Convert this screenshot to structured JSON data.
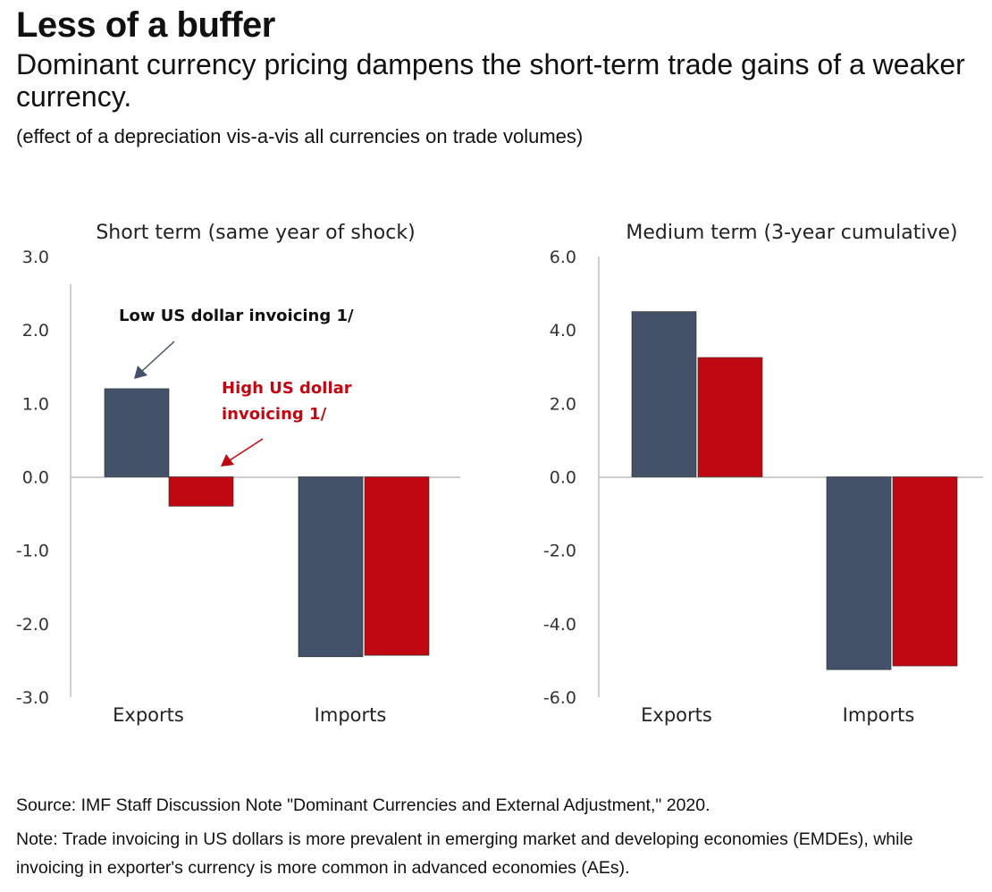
{
  "header": {
    "title": "Less of a buffer",
    "subtitle": "Dominant currency pricing dampens the short-term trade gains of a weaker currency.",
    "note": "(effect of a depreciation vis-a-vis all currencies on trade volumes)"
  },
  "colors": {
    "low_usd": "#435268",
    "high_usd": "#C00812",
    "axis": "#bfbfbf"
  },
  "chart_data": [
    {
      "type": "bar",
      "title": "Short term (same year of shock)",
      "categories": [
        "Exports",
        "Imports"
      ],
      "series": [
        {
          "name": "Low US dollar invoicing 1/",
          "values": [
            1.2,
            -2.45
          ]
        },
        {
          "name": "High US dollar invoicing 1/",
          "values": [
            -0.4,
            -2.43
          ]
        }
      ],
      "ylim": [
        -3,
        3
      ],
      "yticks": [
        3,
        2,
        1,
        0,
        -1,
        -2,
        -3
      ],
      "ytick_labels": [
        "3.0",
        "2.0",
        "1.0",
        "0.0",
        "-1.0",
        "-2.0",
        "-3.0"
      ],
      "annotations": {
        "low": "Low US dollar invoicing 1/",
        "high_line1": "High US dollar",
        "high_line2": "invoicing 1/"
      }
    },
    {
      "type": "bar",
      "title": "Medium term (3-year cumulative)",
      "categories": [
        "Exports",
        "Imports"
      ],
      "series": [
        {
          "name": "Low US dollar invoicing 1/",
          "values": [
            4.5,
            -5.25
          ]
        },
        {
          "name": "High US dollar invoicing 1/",
          "values": [
            3.25,
            -5.15
          ]
        }
      ],
      "ylim": [
        -6,
        6
      ],
      "yticks": [
        6,
        4,
        2,
        0,
        -2,
        -4,
        -6
      ],
      "ytick_labels": [
        "6.0",
        "4.0",
        "2.0",
        "0.0",
        "-2.0",
        "-4.0",
        "-6.0"
      ]
    }
  ],
  "footer": {
    "source": "Source: IMF Staff Discussion Note \"Dominant Currencies and External Adjustment,\" 2020.",
    "note_line1": "Note: Trade invoicing in US dollars is more prevalent in emerging market and developing economies (EMDEs), while",
    "note_line2": "invoicing in exporter's currency is more common in advanced economies (AEs)."
  }
}
